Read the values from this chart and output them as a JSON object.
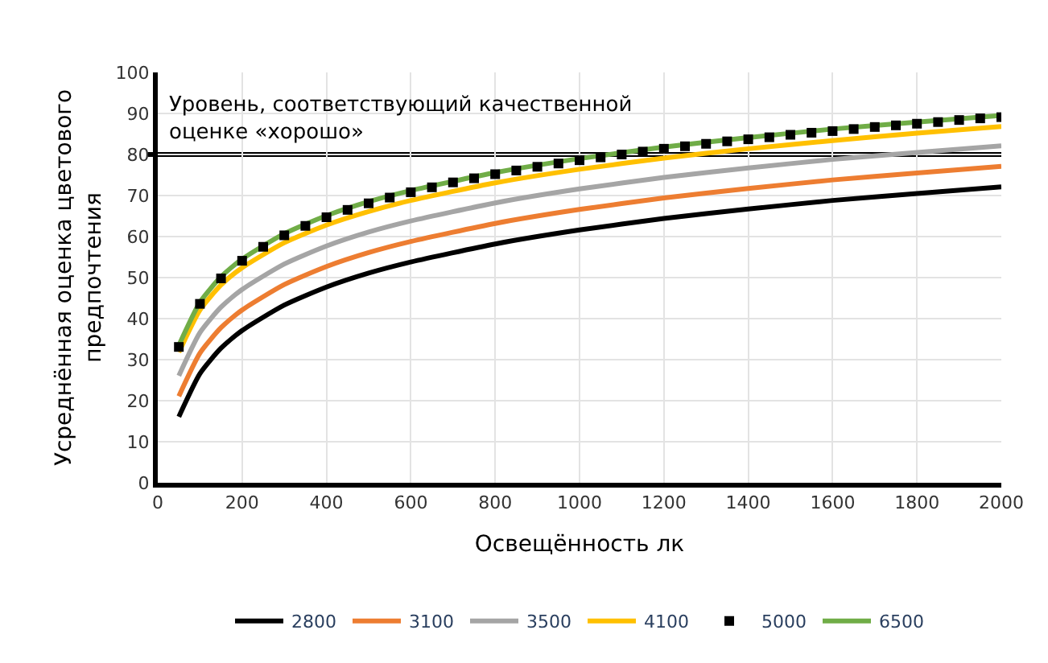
{
  "chart_data": {
    "type": "line",
    "xlabel": "Освещённость лк",
    "ylabel": "Усреднённая оценка цветового\nпредпочтения",
    "x": [
      50,
      100,
      150,
      200,
      300,
      400,
      500,
      600,
      800,
      1000,
      1200,
      1400,
      1600,
      1800,
      2000
    ],
    "series": [
      {
        "name": "2800",
        "color": "#000000",
        "values": [
          16.1,
          26.6,
          32.8,
          37.1,
          43.3,
          47.7,
          51.1,
          53.8,
          58.2,
          61.6,
          64.4,
          66.7,
          68.8,
          70.5,
          72.1
        ]
      },
      {
        "name": "3100",
        "color": "#ed7d31",
        "values": [
          21.1,
          31.6,
          37.8,
          42.1,
          48.3,
          52.7,
          56.1,
          58.8,
          63.2,
          66.6,
          69.4,
          71.7,
          73.8,
          75.5,
          77.1
        ]
      },
      {
        "name": "3500",
        "color": "#a5a5a5",
        "values": [
          26.1,
          36.6,
          42.8,
          47.1,
          53.3,
          57.7,
          61.1,
          63.8,
          68.2,
          71.6,
          74.4,
          76.7,
          78.8,
          80.5,
          82.1
        ]
      },
      {
        "name": "4100",
        "color": "#ffc000",
        "values": [
          31.8,
          42.1,
          48.2,
          52.4,
          58.5,
          62.8,
          66.1,
          68.8,
          73.1,
          76.4,
          79.1,
          81.4,
          83.4,
          85.2,
          86.8
        ]
      },
      {
        "name": "5000",
        "color": "#000000",
        "type": "scatter",
        "marker": "square",
        "x": [
          50,
          100,
          150,
          200,
          250,
          300,
          350,
          400,
          450,
          500,
          550,
          600,
          650,
          700,
          750,
          800,
          850,
          900,
          950,
          1000,
          1050,
          1100,
          1150,
          1200,
          1250,
          1300,
          1350,
          1400,
          1450,
          1500,
          1550,
          1600,
          1650,
          1700,
          1750,
          1800,
          1850,
          1900,
          1950,
          2000
        ],
        "values": [
          33.1,
          43.6,
          49.8,
          54.1,
          57.5,
          60.3,
          62.6,
          64.7,
          66.5,
          68.1,
          69.5,
          70.8,
          72.0,
          73.2,
          74.2,
          75.2,
          76.1,
          77.0,
          77.8,
          78.6,
          79.3,
          80.0,
          80.7,
          81.4,
          82.0,
          82.6,
          83.2,
          83.7,
          84.2,
          84.8,
          85.3,
          85.7,
          86.2,
          86.7,
          87.1,
          87.5,
          87.9,
          88.4,
          88.8,
          89.1
        ]
      },
      {
        "name": "6500",
        "color": "#70ad47",
        "values": [
          33.5,
          44.0,
          50.2,
          54.5,
          60.7,
          65.1,
          68.5,
          71.2,
          75.6,
          79.0,
          81.8,
          84.1,
          86.2,
          87.9,
          89.5
        ]
      }
    ],
    "xlim": [
      0,
      2000
    ],
    "xticks": [
      0,
      200,
      400,
      600,
      800,
      1000,
      1200,
      1400,
      1600,
      1800,
      2000
    ],
    "ylim": [
      0,
      100
    ],
    "yticks": [
      0,
      10,
      20,
      30,
      40,
      50,
      60,
      70,
      80,
      90,
      100
    ],
    "ref_lines": [
      {
        "axis": "y",
        "value": 80,
        "label": "Уровень, соответствующий качественной\nоценке «хорошо»",
        "color": "#000000"
      }
    ],
    "grid": true,
    "legend": "bottom",
    "marker": "none",
    "line_style": "solid"
  }
}
